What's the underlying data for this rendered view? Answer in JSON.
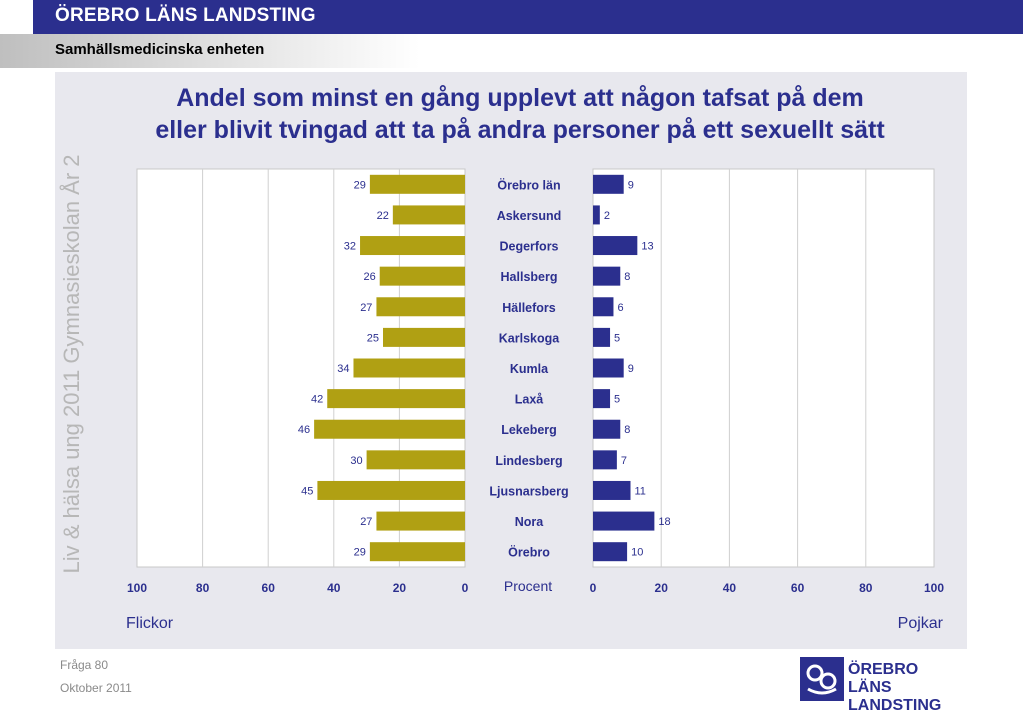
{
  "header": {
    "organization": "ÖREBRO LÄNS LANDSTING",
    "unit": "Samhällsmedicinska enheten"
  },
  "side_title": "Liv & hälsa ung 2011 Gymnasieskolan År 2",
  "footer": {
    "question": "Fråga 80",
    "date": "Oktober 2011"
  },
  "logo": {
    "line1": "ÖREBRO LÄNS",
    "line2": "LANDSTING",
    "icon": "landsting-logo-icon"
  },
  "colors": {
    "header_blue": "#2b2f8e",
    "flickor_bar": "#b0a013",
    "pojkar_bar": "#2b2f8e",
    "label_text": "#2b2f8e"
  },
  "chart_data": {
    "type": "bar",
    "orientation": "horizontal-butterfly",
    "title": [
      "Andel som minst en gång upplevt att någon tafsat på dem",
      "eller blivit tvingad att ta på andra personer på ett sexuellt sätt"
    ],
    "xlabel": "Procent",
    "categories": [
      "Örebro län",
      "Askersund",
      "Degerfors",
      "Hallsberg",
      "Hällefors",
      "Karlskoga",
      "Kumla",
      "Laxå",
      "Lekeberg",
      "Lindesberg",
      "Ljusnarsberg",
      "Nora",
      "Örebro"
    ],
    "series": [
      {
        "name": "Flickor",
        "side": "left",
        "values": [
          29,
          22,
          32,
          26,
          27,
          25,
          34,
          42,
          46,
          30,
          45,
          27,
          29
        ]
      },
      {
        "name": "Pojkar",
        "side": "right",
        "values": [
          9,
          2,
          13,
          8,
          6,
          5,
          9,
          5,
          8,
          7,
          11,
          18,
          10
        ]
      }
    ],
    "xlim": [
      0,
      100
    ],
    "left_ticks": [
      "100",
      "80",
      "60",
      "40",
      "20",
      "0"
    ],
    "right_ticks": [
      "0",
      "20",
      "40",
      "60",
      "80",
      "100"
    ],
    "grid": true,
    "data_labels": true
  }
}
